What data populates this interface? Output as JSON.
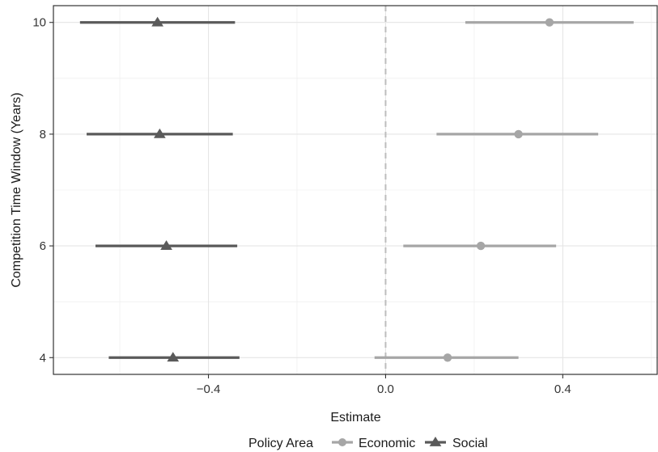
{
  "chart_data": {
    "type": "scatter",
    "subtype": "coefficient-plot-with-error-bars",
    "title": "",
    "xlabel": "Estimate",
    "ylabel": "Competition Time Window (Years)",
    "xlim": [
      -0.75,
      0.615
    ],
    "ylim": [
      3.7,
      10.3
    ],
    "x_ticks": [
      -0.4,
      0.0,
      0.4
    ],
    "x_tick_labels": [
      "-0.4",
      "0.0",
      "0.4"
    ],
    "y_ticks": [
      4,
      6,
      8,
      10
    ],
    "y_tick_labels": [
      "4",
      "6",
      "8",
      "10"
    ],
    "reference_line_x": 0.0,
    "grid": true,
    "legend": {
      "title": "Policy Area",
      "position": "bottom"
    },
    "series": [
      {
        "name": "Economic",
        "marker": "circle",
        "color": "#a6a6a6",
        "points": [
          {
            "y": 10,
            "x": 0.37,
            "low": 0.18,
            "high": 0.56
          },
          {
            "y": 8,
            "x": 0.3,
            "low": 0.115,
            "high": 0.48
          },
          {
            "y": 6,
            "x": 0.215,
            "low": 0.04,
            "high": 0.385
          },
          {
            "y": 4,
            "x": 0.14,
            "low": -0.025,
            "high": 0.3
          }
        ]
      },
      {
        "name": "Social",
        "marker": "triangle",
        "color": "#5a5a5a",
        "points": [
          {
            "y": 10,
            "x": -0.515,
            "low": -0.69,
            "high": -0.34
          },
          {
            "y": 8,
            "x": -0.51,
            "low": -0.675,
            "high": -0.345
          },
          {
            "y": 6,
            "x": -0.495,
            "low": -0.655,
            "high": -0.335
          },
          {
            "y": 4,
            "x": -0.48,
            "low": -0.625,
            "high": -0.33
          }
        ]
      }
    ]
  }
}
